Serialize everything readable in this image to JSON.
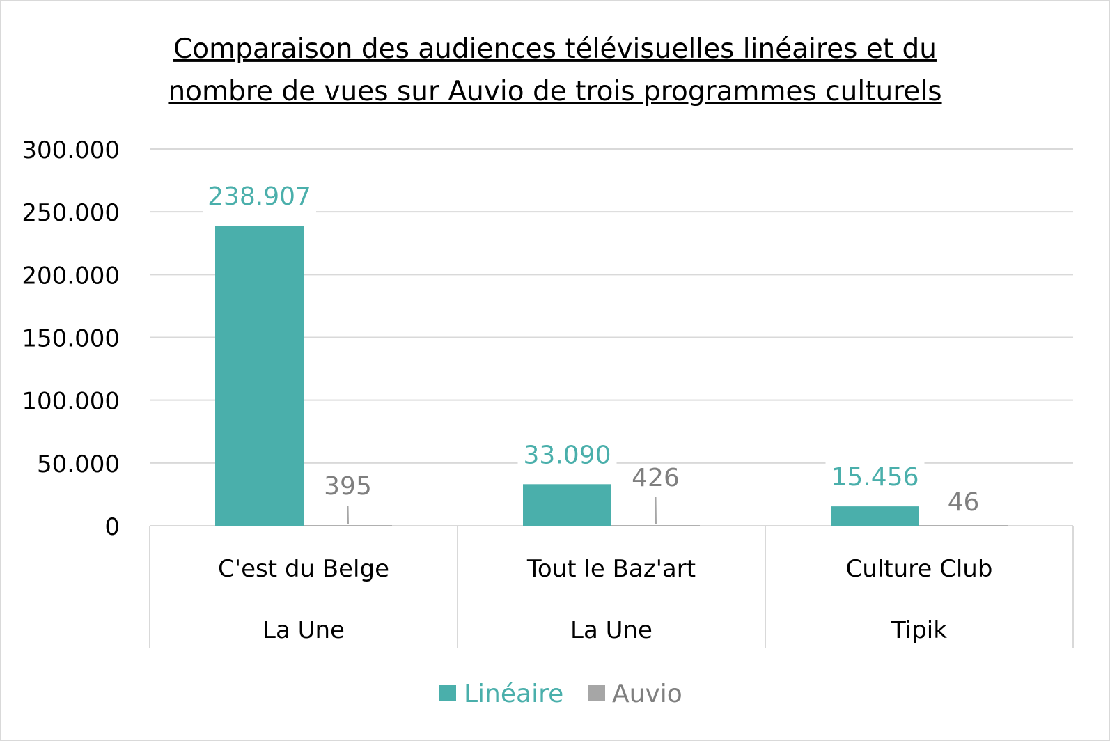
{
  "chart_data": {
    "type": "bar",
    "title": "Comparaison des audiences télévisuelles linéaires et du nombre de vues sur Auvio de trois programmes culturels",
    "title_lines": [
      "Comparaison des audiences télévisuelles linéaires et du",
      "nombre de vues sur Auvio de trois programmes culturels"
    ],
    "categories": [
      "C'est du Belge",
      "Tout le Baz'art",
      "Culture Club"
    ],
    "category_groups": [
      "La Une",
      "La Une",
      "Tipik"
    ],
    "series": [
      {
        "name": "Linéaire",
        "color": "#4aafab",
        "values": [
          238907,
          33090,
          15456
        ],
        "labels": [
          "238.907",
          "33.090",
          "15.456"
        ]
      },
      {
        "name": "Auvio",
        "color": "#a6a6a6",
        "values": [
          395,
          426,
          46
        ],
        "labels": [
          "395",
          "426",
          "46"
        ]
      }
    ],
    "y_ticks": [
      0,
      50000,
      100000,
      150000,
      200000,
      250000,
      300000
    ],
    "y_tick_labels": [
      "0",
      "50.000",
      "100.000",
      "150.000",
      "200.000",
      "250.000",
      "300.000"
    ],
    "ylim": [
      0,
      300000
    ],
    "grid": true,
    "legend": "bottom",
    "xlabel": "",
    "ylabel": ""
  }
}
